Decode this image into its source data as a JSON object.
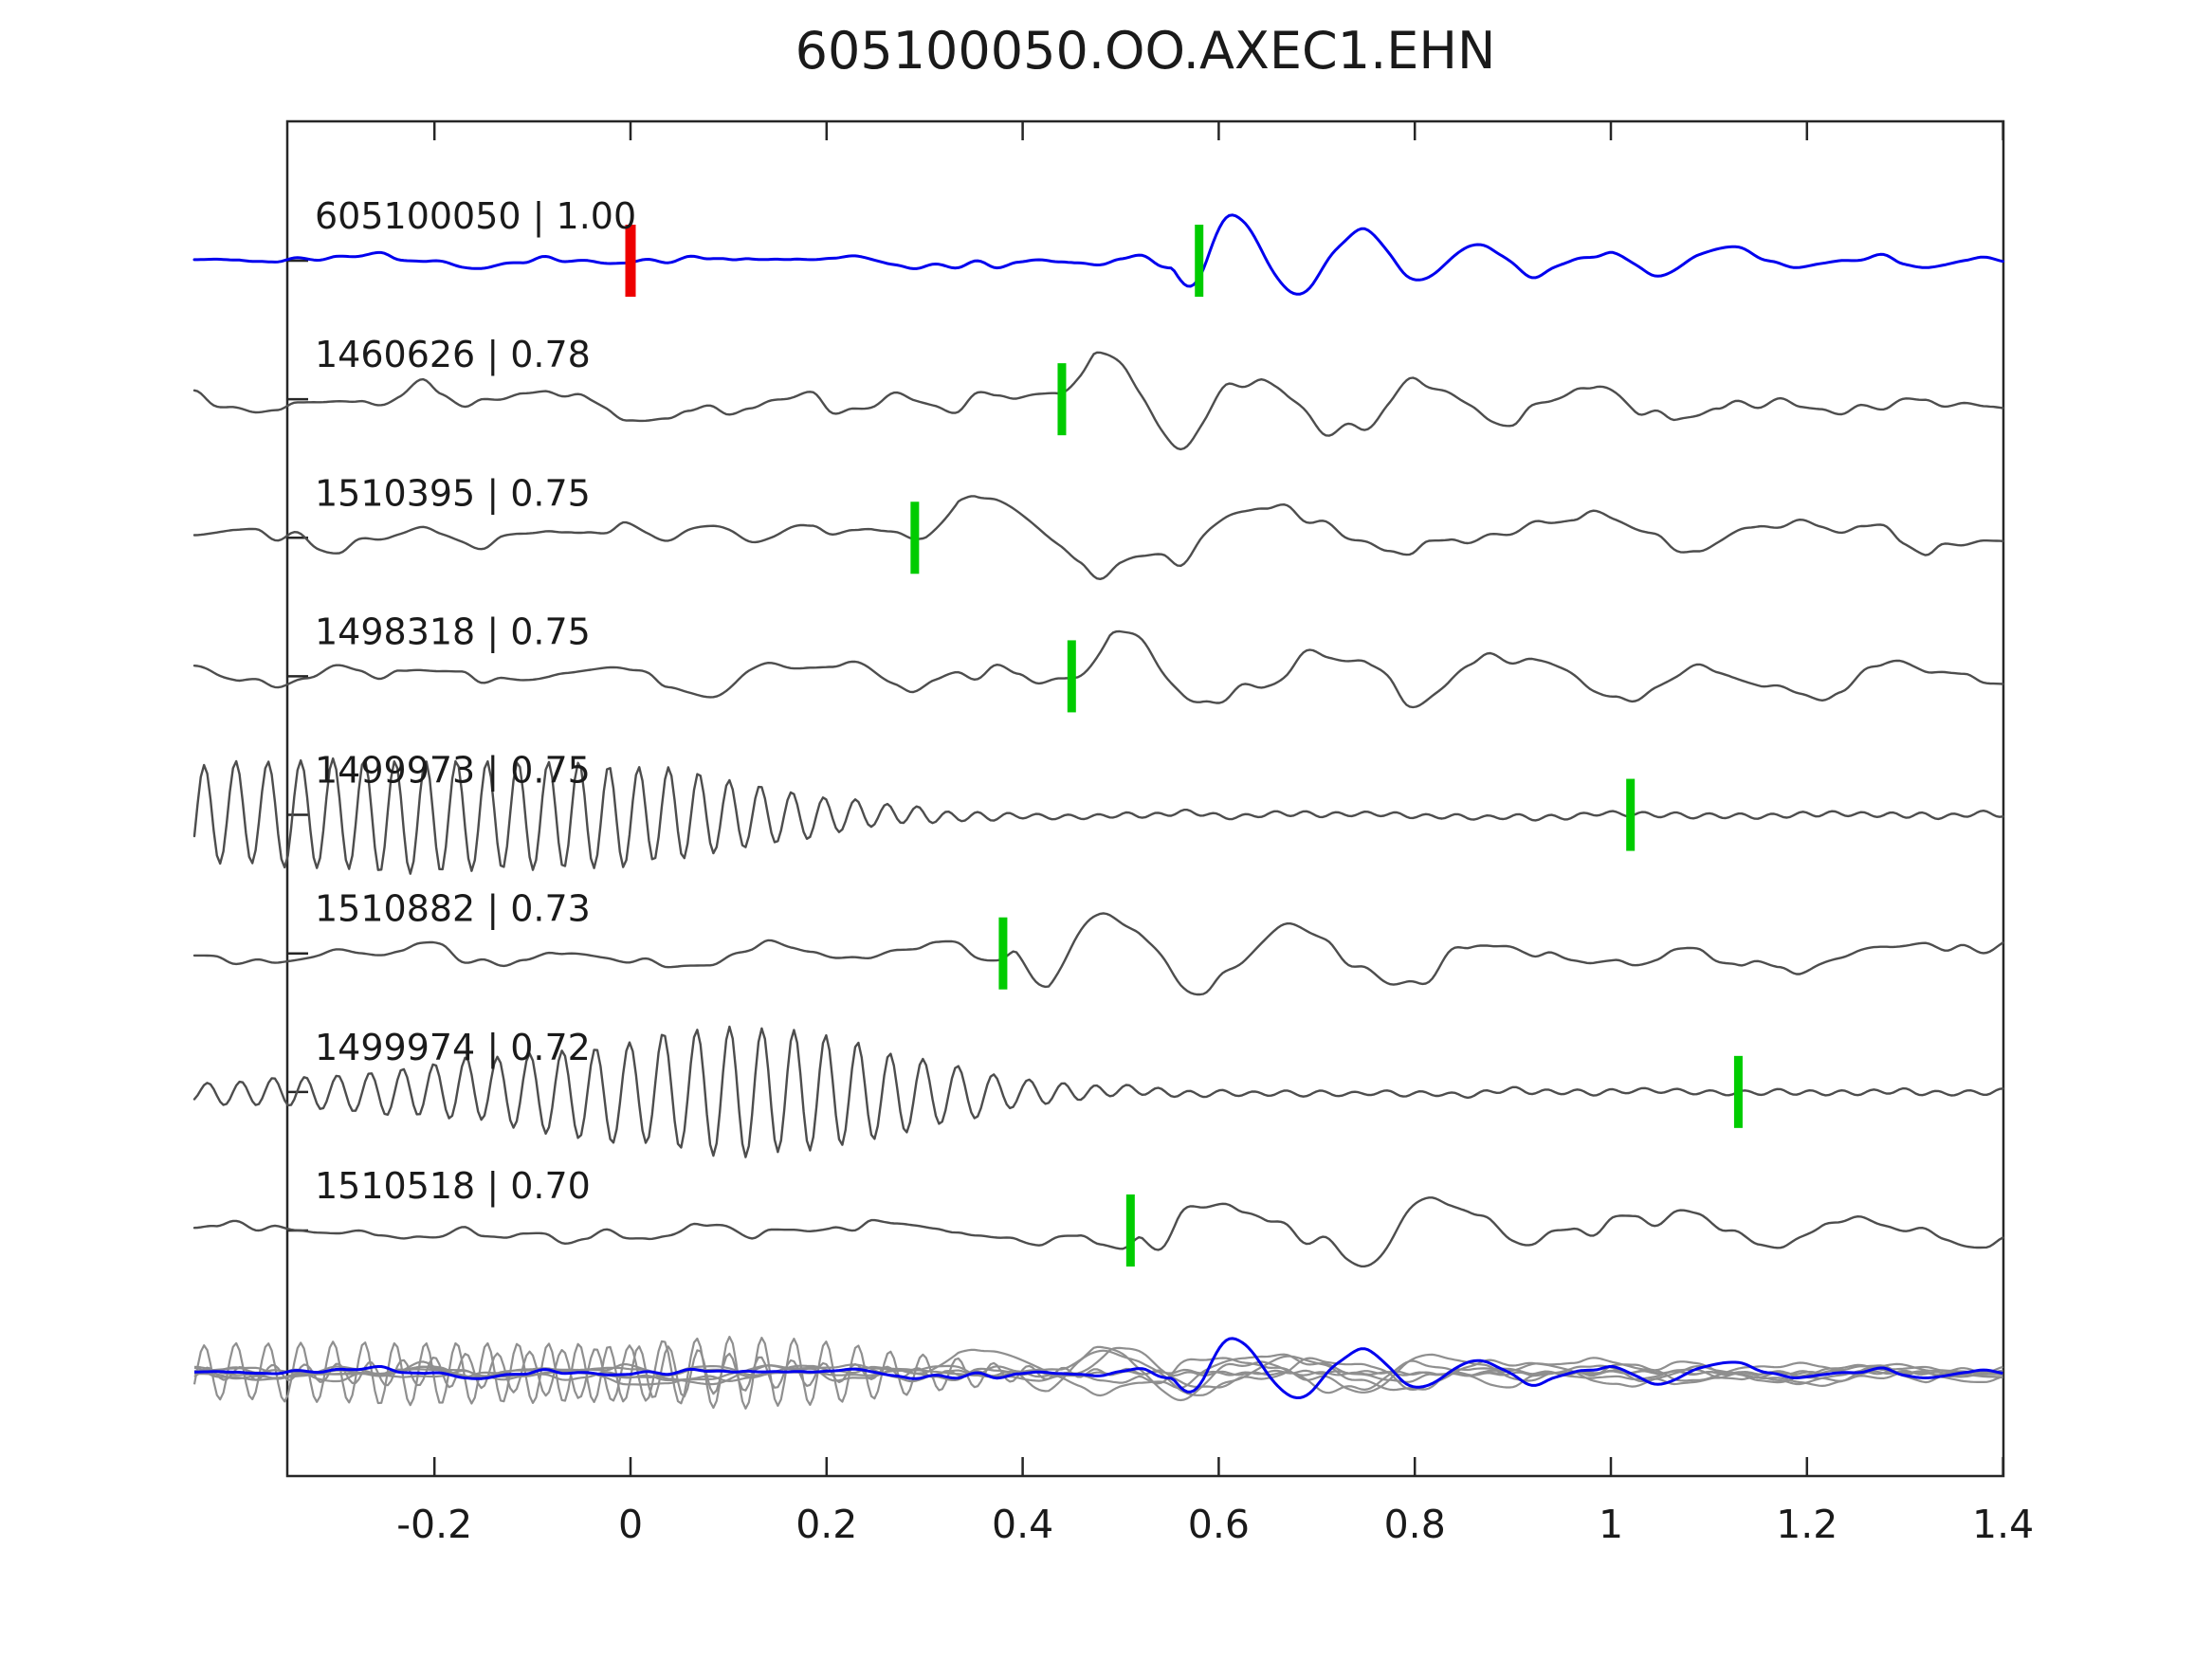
{
  "title": "605100050.OO.AXEC1.EHN",
  "chart_data": {
    "type": "line",
    "title": "605100050.OO.AXEC1.EHN",
    "xlabel": "",
    "ylabel": "",
    "xlim": [
      -0.35,
      1.4
    ],
    "x_data_start": -0.445,
    "x_data_end": 1.4,
    "grid": false,
    "legend": "none",
    "x_tick_values": [
      -0.2,
      0,
      0.2,
      0.4,
      0.6,
      0.8,
      1,
      1.2,
      1.4
    ],
    "x_tick_labels": [
      "-0.2",
      "0",
      "0.2",
      "0.4",
      "0.6",
      "0.8",
      "1",
      "1.2",
      "1.4"
    ],
    "colors": {
      "template_trace": "#0000ee",
      "detection_trace": "#4d4d4d",
      "overlay_trace": "#8f8f8f",
      "pick_marker": "#00cc00",
      "template_marker": "#ee0000",
      "axis": "#262626",
      "text": "#1a1a1a"
    },
    "traces": [
      {
        "id": "605100050",
        "cc": 1.0,
        "label": "605100050 | 1.00",
        "role": "template",
        "color": "#0000ee",
        "pick_time": 0.58,
        "pick_color": "#00cc00",
        "template_time": 0.0,
        "template_marker_color": "#ee0000",
        "wf": {
          "seed": 11,
          "namp": [
            [
              -0.445,
              11
            ],
            [
              0.3,
              12
            ],
            [
              0.5,
              13
            ],
            [
              0.62,
              16
            ],
            [
              0.8,
              14
            ],
            [
              1.4,
              12
            ]
          ],
          "packet": {
            "t0": 0.553,
            "A": 58,
            "f": 8,
            "tau": 0.26,
            "phase": -1.7
          }
        }
      },
      {
        "id": "1460626",
        "cc": 0.78,
        "label": "1460626 | 0.78",
        "role": "detection",
        "color": "#4d4d4d",
        "pick_time": 0.44,
        "pick_color": "#00cc00",
        "wf": {
          "seed": 22,
          "namp": [
            [
              -0.445,
              26
            ],
            [
              0.3,
              26
            ],
            [
              0.45,
              30
            ],
            [
              0.6,
              32
            ],
            [
              0.8,
              28
            ],
            [
              1.4,
              25
            ]
          ],
          "packet": {
            "t0": 0.438,
            "A": 40,
            "f": 6,
            "tau": 0.33,
            "phase": 0.2
          }
        }
      },
      {
        "id": "1510395",
        "cc": 0.75,
        "label": "1510395 | 0.75",
        "role": "detection",
        "color": "#4d4d4d",
        "pick_time": 0.29,
        "pick_color": "#00cc00",
        "wf": {
          "seed": 33,
          "namp": [
            [
              -0.445,
              18
            ],
            [
              0.15,
              20
            ],
            [
              0.3,
              22
            ],
            [
              0.5,
              26
            ],
            [
              0.8,
              25
            ],
            [
              1.4,
              23
            ]
          ],
          "packet": {
            "t0": 0.3,
            "A": 54,
            "f": 3.4,
            "tau": 0.5,
            "phase": 0.3
          }
        }
      },
      {
        "id": "1498318",
        "cc": 0.75,
        "label": "1498318 | 0.75",
        "role": "detection",
        "color": "#4d4d4d",
        "pick_time": 0.45,
        "pick_color": "#00cc00",
        "wf": {
          "seed": 44,
          "namp": [
            [
              -0.445,
              22
            ],
            [
              0.35,
              24
            ],
            [
              0.5,
              27
            ],
            [
              0.75,
              26
            ],
            [
              1.4,
              22
            ]
          ],
          "packet": {
            "t0": 0.455,
            "A": 50,
            "f": 5,
            "tau": 0.45,
            "phase": 0.2
          }
        }
      },
      {
        "id": "1499973",
        "cc": 0.75,
        "label": "1499973 | 0.75",
        "role": "detection",
        "color": "#4d4d4d",
        "pick_time": 1.02,
        "pick_color": "#00cc00",
        "wf": {
          "seed": 55,
          "namp": [
            [
              -0.445,
              4
            ],
            [
              1.4,
              4
            ]
          ],
          "osc": {
            "f": 32,
            "phase": 0.4,
            "env": [
              [
                -0.445,
                52
              ],
              [
                -0.25,
                60
              ],
              [
                -0.05,
                56
              ],
              [
                0.05,
                48
              ],
              [
                0.15,
                28
              ],
              [
                0.25,
                12
              ],
              [
                0.33,
                5
              ],
              [
                0.42,
                2.5
              ],
              [
                1.4,
                2.5
              ]
            ]
          }
        }
      },
      {
        "id": "1510882",
        "cc": 0.73,
        "label": "1510882 | 0.73",
        "role": "detection",
        "color": "#4d4d4d",
        "pick_time": 0.38,
        "pick_color": "#00cc00",
        "wf": {
          "seed": 66,
          "namp": [
            [
              -0.445,
              14
            ],
            [
              0.3,
              16
            ],
            [
              0.45,
              20
            ],
            [
              0.7,
              24
            ],
            [
              1.4,
              20
            ]
          ],
          "packet": {
            "t0": 0.392,
            "A": 56,
            "f": 5.2,
            "tau": 0.42,
            "phase": -1.9
          }
        }
      },
      {
        "id": "1499974",
        "cc": 0.72,
        "label": "1499974 | 0.72",
        "role": "detection",
        "color": "#4d4d4d",
        "pick_time": 1.13,
        "pick_color": "#00cc00",
        "wf": {
          "seed": 77,
          "namp": [
            [
              -0.445,
              6
            ],
            [
              0.5,
              4
            ],
            [
              1.4,
              3.5
            ]
          ],
          "osc": {
            "f": 30,
            "phase": 1.2,
            "env": [
              [
                -0.445,
                10
              ],
              [
                -0.3,
                18
              ],
              [
                -0.15,
                34
              ],
              [
                0,
                54
              ],
              [
                0.1,
                70
              ],
              [
                0.2,
                60
              ],
              [
                0.3,
                36
              ],
              [
                0.4,
                14
              ],
              [
                0.5,
                5
              ],
              [
                0.6,
                2.5
              ],
              [
                1.4,
                2.5
              ]
            ]
          }
        }
      },
      {
        "id": "1510518",
        "cc": 0.7,
        "label": "1510518 | 0.70",
        "role": "detection",
        "color": "#4d4d4d",
        "pick_time": 0.51,
        "pick_color": "#00cc00",
        "wf": {
          "seed": 88,
          "namp": [
            [
              -0.445,
              20
            ],
            [
              0.35,
              22
            ],
            [
              0.55,
              24
            ],
            [
              0.9,
              24
            ],
            [
              1.4,
              20
            ]
          ],
          "packet": {
            "t0": 0.52,
            "A": 46,
            "f": 4.6,
            "tau": 0.42,
            "phase": -1.3
          }
        }
      }
    ],
    "overlay": {
      "description": "all detection traces overlaid in gray with blue template on top",
      "gray_members": [
        "1460626",
        "1510395",
        "1498318",
        "1499973",
        "1510882",
        "1499974",
        "1510518"
      ],
      "blue_member": "605100050",
      "gray_color": "#8f8f8f",
      "blue_color": "#0000ee",
      "gray_scale": 0.55,
      "blue_scale": 0.75
    }
  }
}
